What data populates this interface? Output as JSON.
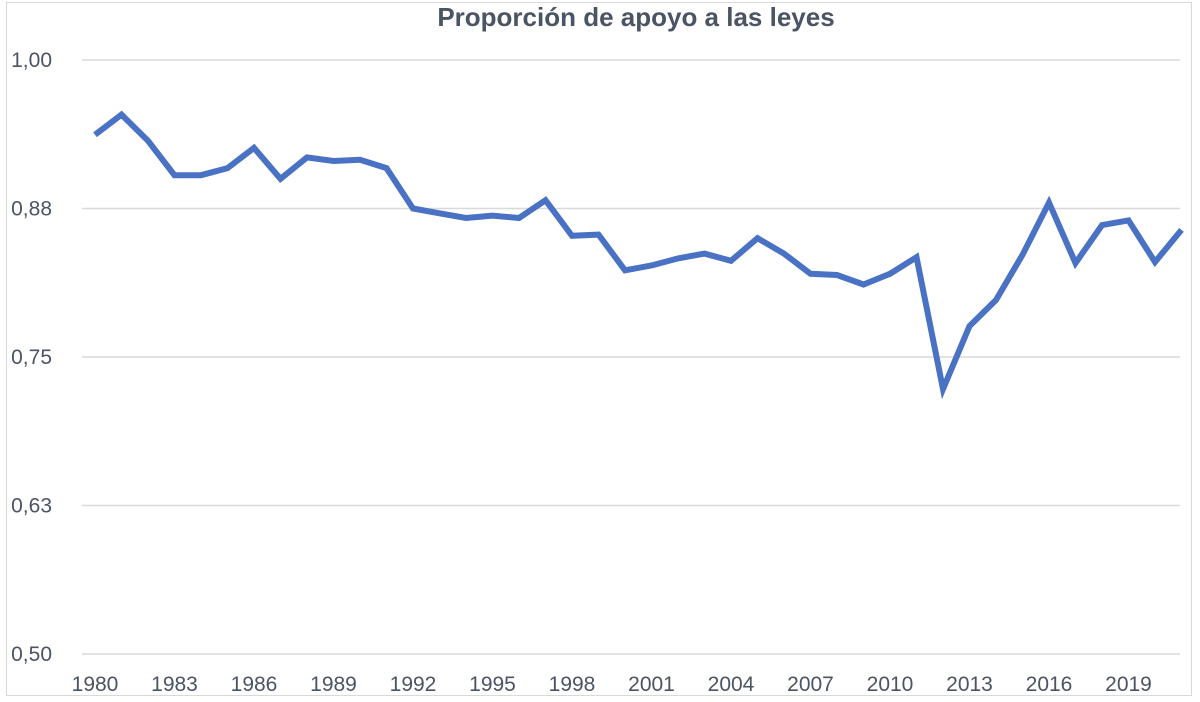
{
  "chart_data": {
    "type": "line",
    "title": "Proporción de apoyo a las leyes",
    "xlabel": "",
    "ylabel": "",
    "ylim": [
      0.5,
      1.0
    ],
    "xlim": [
      1980,
      2021
    ],
    "yticks": [
      0.5,
      0.625,
      0.75,
      0.875,
      1.0
    ],
    "ytick_labels": [
      "0,50",
      "0,63",
      "0,75",
      "0,88",
      "1,00"
    ],
    "xticks": [
      1980,
      1983,
      1986,
      1989,
      1992,
      1995,
      1998,
      2001,
      2004,
      2007,
      2010,
      2013,
      2016,
      2019
    ],
    "xtick_labels": [
      "1980",
      "1983",
      "1986",
      "1989",
      "1992",
      "1995",
      "1998",
      "2001",
      "2004",
      "2007",
      "2010",
      "2013",
      "2016",
      "2019"
    ],
    "grid": true,
    "legend": "none",
    "color": "#4a72c4",
    "series": [
      {
        "x": [
          1980,
          1981,
          1982,
          1983,
          1984,
          1985,
          1986,
          1987,
          1988,
          1989,
          1990,
          1991,
          1992,
          1993,
          1994,
          1995,
          1996,
          1997,
          1998,
          1999,
          2000,
          2001,
          2002,
          2003,
          2004,
          2005,
          2006,
          2007,
          2008,
          2009,
          2010,
          2011,
          2012,
          2013,
          2014,
          2015,
          2016,
          2017,
          2018,
          2019,
          2020,
          2021
        ],
        "values": [
          0.937,
          0.954,
          0.932,
          0.903,
          0.903,
          0.909,
          0.926,
          0.9,
          0.918,
          0.915,
          0.916,
          0.909,
          0.875,
          0.871,
          0.867,
          0.869,
          0.867,
          0.882,
          0.852,
          0.853,
          0.823,
          0.827,
          0.833,
          0.837,
          0.831,
          0.85,
          0.837,
          0.82,
          0.819,
          0.811,
          0.82,
          0.834,
          0.723,
          0.776,
          0.798,
          0.836,
          0.88,
          0.829,
          0.861,
          0.865,
          0.83,
          0.857
        ]
      }
    ]
  }
}
